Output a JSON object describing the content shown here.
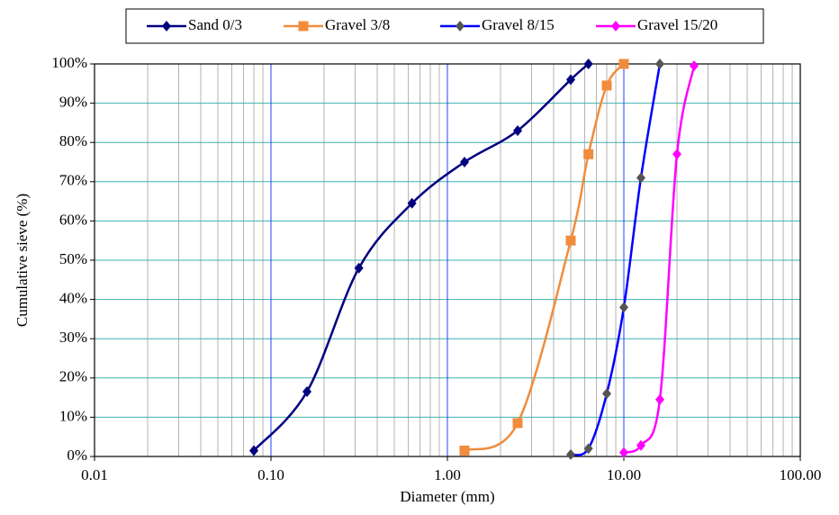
{
  "chart_data": {
    "type": "line",
    "x_label": "Diameter (mm)",
    "y_label": "Cumulative sieve (%)",
    "xscale": "log",
    "xlim": [
      0.01,
      100
    ],
    "ylim": [
      0,
      100
    ],
    "xticks": [
      {
        "value": 0.01,
        "label": "0.01"
      },
      {
        "value": 0.1,
        "label": "0.10"
      },
      {
        "value": 1,
        "label": "1.00"
      },
      {
        "value": 10,
        "label": "10.00"
      },
      {
        "value": 100,
        "label": "100.00"
      }
    ],
    "yticks": [
      {
        "value": 0,
        "label": "0%"
      },
      {
        "value": 10,
        "label": "10%"
      },
      {
        "value": 20,
        "label": "20%"
      },
      {
        "value": 30,
        "label": "30%"
      },
      {
        "value": 40,
        "label": "40%"
      },
      {
        "value": 50,
        "label": "50%"
      },
      {
        "value": 60,
        "label": "60%"
      },
      {
        "value": 70,
        "label": "70%"
      },
      {
        "value": 80,
        "label": "80%"
      },
      {
        "value": 90,
        "label": "90%"
      },
      {
        "value": 100,
        "label": "100%"
      }
    ],
    "grid": true,
    "smooth": true,
    "legend": "top",
    "series": [
      {
        "name": "Sand 0/3",
        "color": "#000080",
        "marker": "diamond",
        "marker_color": "#000080",
        "x": [
          0.08,
          0.16,
          0.315,
          0.63,
          1.25,
          2.5,
          5,
          6.3
        ],
        "values": [
          1.5,
          16.5,
          48,
          64.5,
          75,
          83,
          96,
          100
        ]
      },
      {
        "name": "Gravel 3/8",
        "color": "#f08c3c",
        "marker": "square",
        "marker_color": "#f08c3c",
        "x": [
          1.25,
          2.5,
          5,
          6.3,
          8,
          10
        ],
        "values": [
          1.5,
          8.5,
          55,
          77,
          94.5,
          100
        ]
      },
      {
        "name": "Gravel 8/15",
        "color": "#0000ff",
        "marker": "diamond",
        "marker_color": "#555555",
        "x": [
          5,
          6.3,
          8,
          10,
          12.5,
          16
        ],
        "values": [
          0.5,
          2,
          16,
          38,
          71,
          100
        ]
      },
      {
        "name": "Gravel 15/20",
        "color": "#ff00ff",
        "marker": "diamond",
        "marker_color": "#ff00ff",
        "x": [
          10,
          12.5,
          16,
          20,
          25
        ],
        "values": [
          1,
          2.8,
          14.5,
          77,
          99.5
        ]
      }
    ]
  }
}
